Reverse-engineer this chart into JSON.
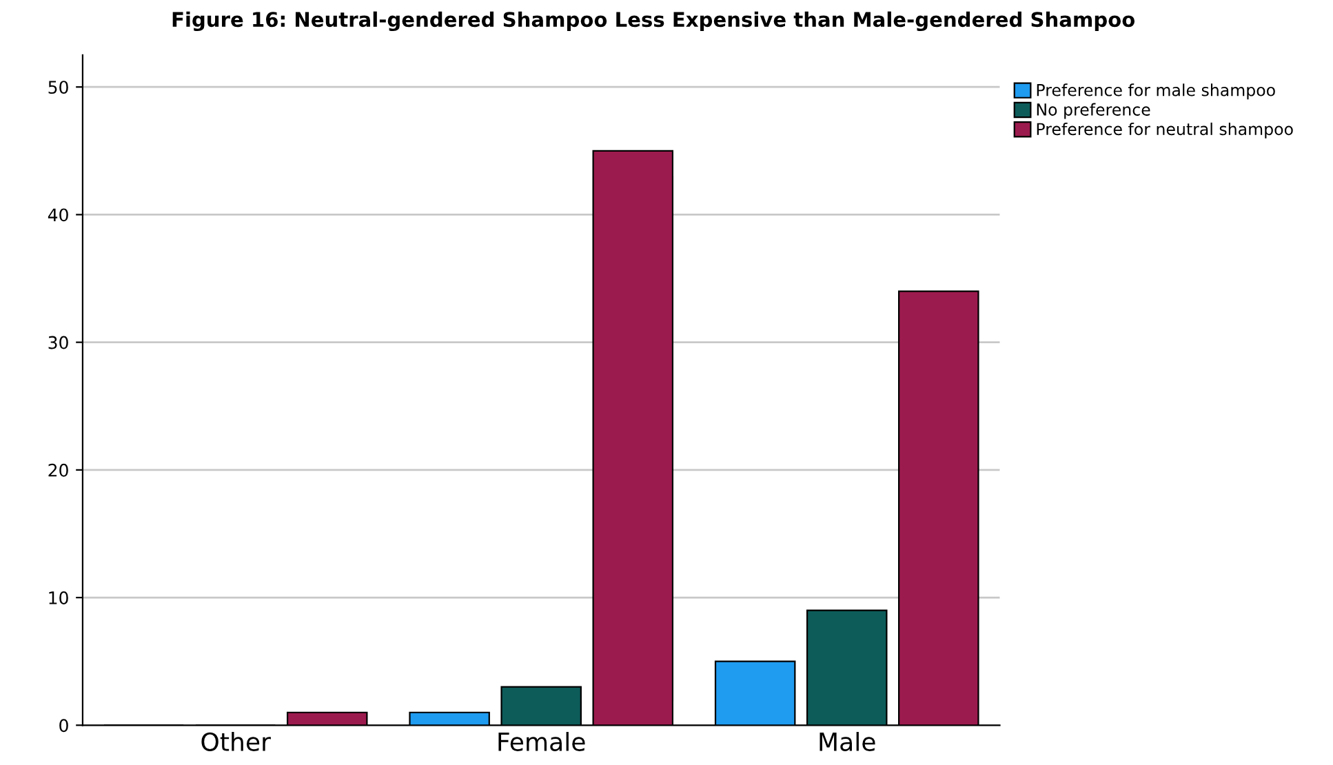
{
  "chart_data": {
    "type": "bar",
    "title": "Figure 16: Neutral-gendered Shampoo Less Expensive than Male-gendered Shampoo",
    "categories": [
      "Other",
      "Female",
      "Male"
    ],
    "series": [
      {
        "name": "Preference for male shampoo",
        "color": "#1f9bf0",
        "values": [
          0,
          1,
          5
        ]
      },
      {
        "name": "No preference",
        "color": "#0d5c5a",
        "values": [
          0,
          3,
          9
        ]
      },
      {
        "name": "Preference for neutral shampoo",
        "color": "#9c1b4e",
        "values": [
          1,
          45,
          34
        ]
      }
    ],
    "ylim": [
      0,
      52.5
    ],
    "yticks": [
      0,
      10,
      20,
      30,
      40,
      50
    ],
    "grid": "y",
    "legend": "top right"
  }
}
